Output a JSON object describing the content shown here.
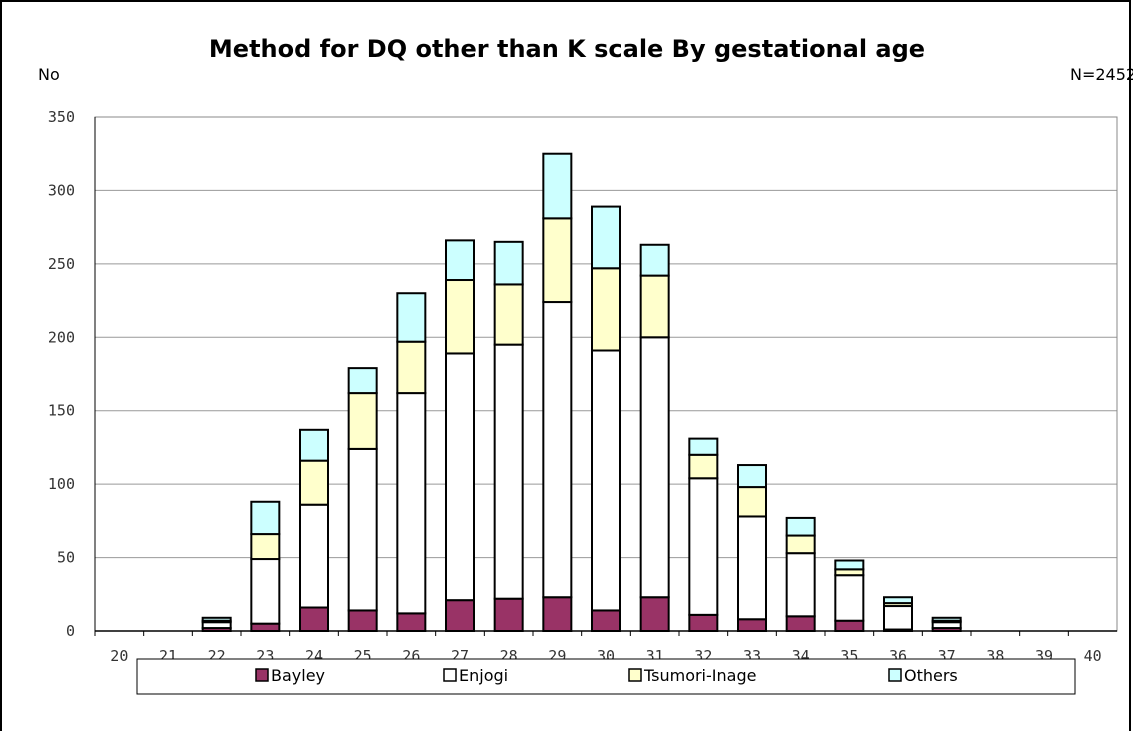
{
  "chart_data": {
    "type": "bar",
    "stacked": true,
    "title": "Method for DQ other than K scale By gestational age",
    "ylabel": "No",
    "note": "N=2452",
    "categories": [
      "20",
      "21",
      "22",
      "23",
      "24",
      "25",
      "26",
      "27",
      "28",
      "29",
      "30",
      "31",
      "32",
      "33",
      "34",
      "35",
      "36",
      "37",
      "38",
      "39",
      "40"
    ],
    "ylim": [
      0,
      350
    ],
    "yticks": [
      0,
      50,
      100,
      150,
      200,
      250,
      300,
      350
    ],
    "grid": true,
    "legend_position": "bottom",
    "series": [
      {
        "name": "Bayley",
        "color": "#993366",
        "values": [
          0,
          0,
          2,
          5,
          16,
          14,
          12,
          21,
          22,
          23,
          14,
          23,
          11,
          8,
          10,
          7,
          1,
          2,
          0,
          0,
          0
        ]
      },
      {
        "name": "Enjogi",
        "color": "#ffffff",
        "values": [
          0,
          0,
          4,
          44,
          70,
          110,
          150,
          168,
          173,
          201,
          177,
          177,
          93,
          70,
          43,
          31,
          16,
          4,
          0,
          0,
          0
        ]
      },
      {
        "name": "Tsumori-Inage",
        "color": "#ffffcc",
        "values": [
          0,
          0,
          1,
          17,
          30,
          38,
          35,
          50,
          41,
          57,
          56,
          42,
          16,
          20,
          12,
          4,
          2,
          1,
          0,
          0,
          0
        ]
      },
      {
        "name": "Others",
        "color": "#ccffff",
        "values": [
          0,
          0,
          2,
          22,
          21,
          17,
          33,
          27,
          29,
          44,
          42,
          21,
          11,
          15,
          12,
          6,
          4,
          2,
          0,
          0,
          0
        ]
      }
    ]
  }
}
